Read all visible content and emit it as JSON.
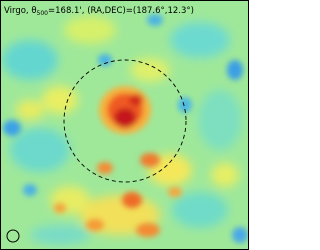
{
  "caption": {
    "name": "Virgo, θ",
    "subscript": "500",
    "rest": "=168.1', (RA,DEC)=(187.6°,12.3°)"
  }
}
